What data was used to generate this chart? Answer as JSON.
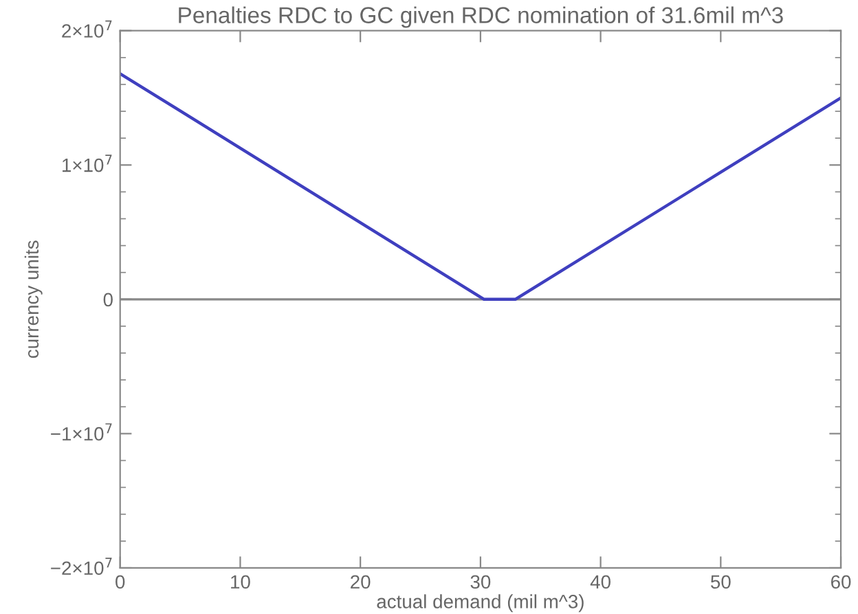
{
  "chart_data": {
    "type": "line",
    "title": "Penalties RDC to GC given RDC nomination of 31.6mil m^3",
    "xlabel": "actual demand (mil m^3)",
    "ylabel": "currency units",
    "series": [
      {
        "color": "#3f3fbf",
        "x": [
          0,
          30.3,
          32.9,
          60
        ],
        "values": [
          16800000,
          0,
          0,
          15000000
        ]
      }
    ],
    "xlim": [
      0,
      60
    ],
    "xticks": [
      0,
      10,
      20,
      30,
      40,
      50,
      60
    ],
    "ylim": [
      -20000000,
      20000000
    ],
    "yticks": [
      {
        "value": -20000000,
        "label": "−2×10$^{7}$"
      },
      {
        "value": -10000000,
        "label": "−1×10$^{7}$"
      },
      0,
      {
        "value": 10000000,
        "label": "1×10$^{7}$"
      },
      {
        "value": 20000000,
        "label": "2×10$^{7}$"
      }
    ],
    "ref_lines": [
      {
        "axis": "y",
        "value": 0,
        "color": "#888888"
      }
    ],
    "grid": false,
    "legend": false,
    "marker": "none",
    "line_style": "solid"
  }
}
